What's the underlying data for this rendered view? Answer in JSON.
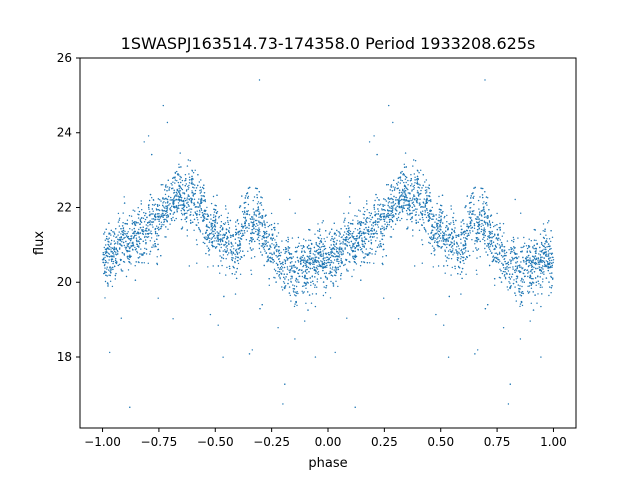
{
  "chart_data": {
    "type": "scatter",
    "title": "1SWASPJ163514.73-174358.0 Period 1933208.625s",
    "xlabel": "phase",
    "ylabel": "flux",
    "xlim": [
      -1.1,
      1.1
    ],
    "ylim": [
      16.1,
      26.0
    ],
    "x_ticks": [
      -1.0,
      -0.75,
      -0.5,
      -0.25,
      0.0,
      0.25,
      0.5,
      0.75,
      1.0
    ],
    "x_tick_labels": [
      "−1.00",
      "−0.75",
      "−0.50",
      "−0.25",
      "0.00",
      "0.25",
      "0.50",
      "0.75",
      "1.00"
    ],
    "y_ticks": [
      18,
      20,
      22,
      24,
      26
    ],
    "y_tick_labels": [
      "18",
      "20",
      "22",
      "24",
      "26"
    ],
    "grid": false,
    "marker_color": "#1f77b4",
    "phase_repeated": true,
    "series": [
      {
        "x": [
          0.0,
          0.02,
          0.04,
          0.06,
          0.08,
          0.1,
          0.12,
          0.14,
          0.16,
          0.18,
          0.2,
          0.22,
          0.24,
          0.26,
          0.28,
          0.3,
          0.32,
          0.34,
          0.36,
          0.38,
          0.4,
          0.42,
          0.44,
          0.46,
          0.48,
          0.5,
          0.52,
          0.54,
          0.56,
          0.58,
          0.6,
          0.62,
          0.64,
          0.66,
          0.68,
          0.7,
          0.72,
          0.74,
          0.76,
          0.78,
          0.8,
          0.82,
          0.84,
          0.86,
          0.88,
          0.9,
          0.92,
          0.94,
          0.96,
          0.98,
          1.0
        ],
        "y": [
          20.6,
          20.8,
          20.7,
          20.9,
          21.0,
          21.2,
          20.9,
          21.3,
          21.1,
          21.4,
          21.3,
          21.6,
          21.5,
          21.8,
          21.9,
          22.2,
          22.3,
          22.5,
          22.0,
          22.3,
          22.4,
          21.9,
          22.2,
          21.5,
          21.3,
          21.4,
          21.0,
          21.2,
          21.1,
          20.8,
          21.0,
          21.5,
          21.9,
          21.3,
          21.8,
          21.6,
          21.2,
          20.9,
          21.0,
          20.7,
          20.3,
          20.6,
          20.4,
          20.1,
          20.5,
          20.3,
          20.6,
          20.4,
          20.8,
          20.5,
          20.6
        ]
      }
    ]
  }
}
